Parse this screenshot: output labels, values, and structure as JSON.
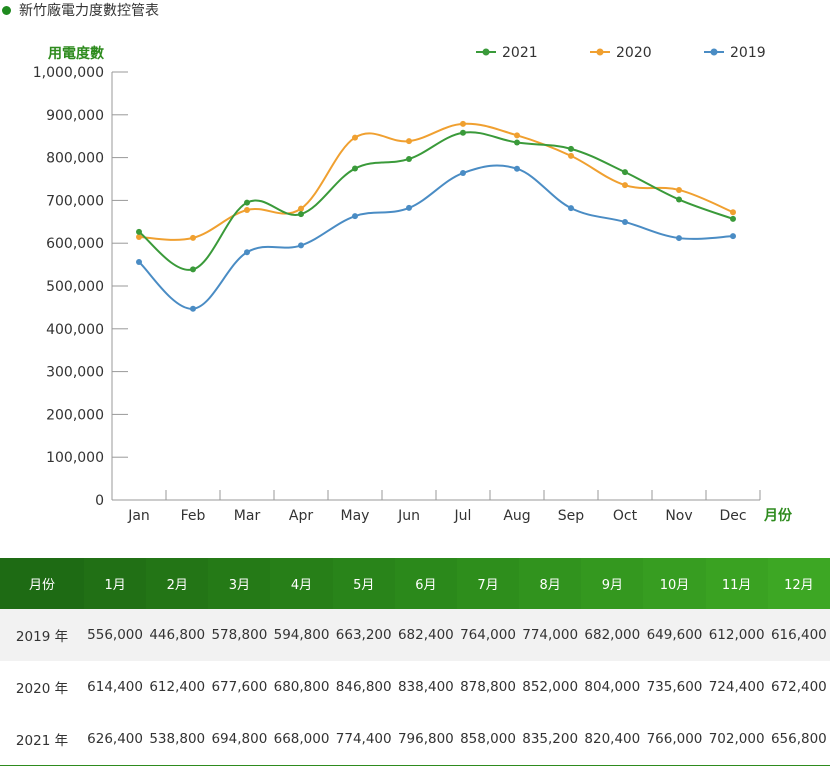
{
  "title": "新竹廠電力度數控管表",
  "colors": {
    "2021": "#3a9a3a",
    "2020": "#f0a030",
    "2019": "#4a8cc4",
    "accent": "#2e8b1e",
    "axis": "#999999"
  },
  "chart_data": {
    "type": "line",
    "ylabel": "用電度數",
    "xlabel": "月份",
    "categories": [
      "Jan",
      "Feb",
      "Mar",
      "Apr",
      "May",
      "Jun",
      "Jul",
      "Aug",
      "Sep",
      "Oct",
      "Nov",
      "Dec"
    ],
    "ylim": [
      0,
      1000000
    ],
    "yticks": [
      "0",
      "100,000",
      "200,000",
      "300,000",
      "400,000",
      "500,000",
      "600,000",
      "700,000",
      "800,000",
      "900,000",
      "1,000,000"
    ],
    "legend_position": "top-right",
    "grid": false,
    "series": [
      {
        "name": "2021",
        "color": "#3a9a3a",
        "values": [
          626400,
          538800,
          694800,
          668000,
          774400,
          796800,
          858000,
          835200,
          820400,
          766000,
          702000,
          656800
        ]
      },
      {
        "name": "2020",
        "color": "#f0a030",
        "values": [
          614400,
          612400,
          677600,
          680800,
          846800,
          838400,
          878800,
          852000,
          804000,
          735600,
          724400,
          672400
        ]
      },
      {
        "name": "2019",
        "color": "#4a8cc4",
        "values": [
          556000,
          446800,
          578800,
          594800,
          663200,
          682400,
          764000,
          774000,
          682000,
          649600,
          612000,
          616400
        ]
      }
    ]
  },
  "table": {
    "headers": [
      "月份",
      "1月",
      "2月",
      "3月",
      "4月",
      "5月",
      "6月",
      "7月",
      "8月",
      "9月",
      "10月",
      "11月",
      "12月"
    ],
    "header_colors": [
      "#1e6b14",
      "#217015",
      "#237516",
      "#257a17",
      "#277f18",
      "#29841a",
      "#2b891b",
      "#2e8e1c",
      "#31931e",
      "#34981f",
      "#379d21",
      "#3aa222",
      "#3da724"
    ],
    "rows": [
      {
        "label": "2019 年",
        "values": [
          "556,000",
          "446,800",
          "578,800",
          "594,800",
          "663,200",
          "682,400",
          "764,000",
          "774,000",
          "682,000",
          "649,600",
          "612,000",
          "616,400"
        ]
      },
      {
        "label": "2020 年",
        "values": [
          "614,400",
          "612,400",
          "677,600",
          "680,800",
          "846,800",
          "838,400",
          "878,800",
          "852,000",
          "804,000",
          "735,600",
          "724,400",
          "672,400"
        ]
      },
      {
        "label": "2021 年",
        "values": [
          "626,400",
          "538,800",
          "694,800",
          "668,000",
          "774,400",
          "796,800",
          "858,000",
          "835,200",
          "820,400",
          "766,000",
          "702,000",
          "656,800"
        ]
      }
    ]
  }
}
